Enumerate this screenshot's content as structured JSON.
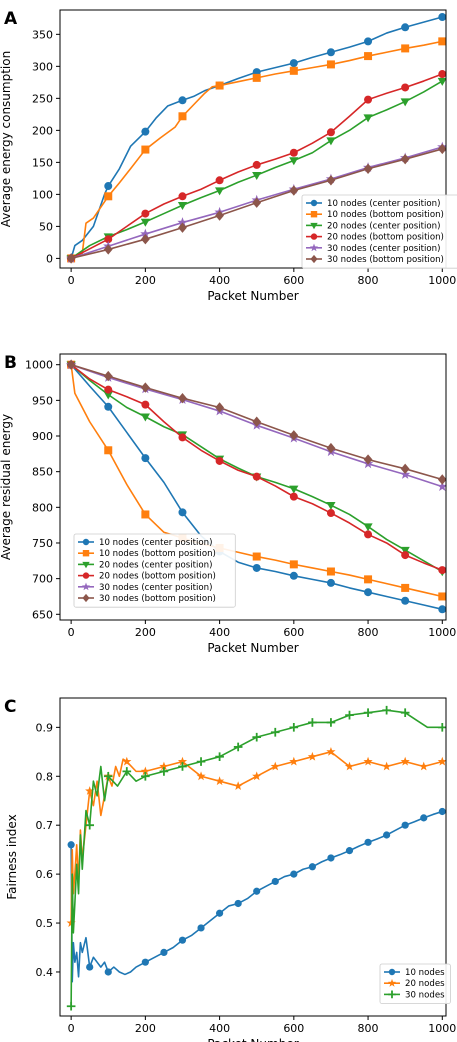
{
  "chart_data": [
    {
      "type": "line",
      "panel_label": "A",
      "xlabel": "Packet Number",
      "ylabel": "Average energy consumption",
      "xlim": [
        -30,
        1010
      ],
      "ylim": [
        -15,
        388
      ],
      "xticks": [
        0,
        200,
        400,
        600,
        800,
        1000
      ],
      "yticks": [
        0,
        50,
        100,
        150,
        200,
        250,
        300,
        350
      ],
      "legend_position": "lower-right",
      "grid": false,
      "series": [
        {
          "name": "10 nodes (center position)",
          "color": "#1f77b4",
          "marker": "circle",
          "x": [
            0,
            10,
            30,
            60,
            90,
            100,
            130,
            160,
            200,
            230,
            260,
            300,
            330,
            360,
            400,
            450,
            500,
            550,
            600,
            650,
            700,
            750,
            800,
            850,
            900,
            950,
            1000
          ],
          "y": [
            0,
            20,
            28,
            50,
            100,
            113,
            140,
            175,
            198,
            220,
            238,
            247,
            253,
            262,
            270,
            281,
            291,
            298,
            305,
            314,
            322,
            330,
            339,
            352,
            361,
            369,
            377
          ]
        },
        {
          "name": "10 nodes (bottom position)",
          "color": "#ff7f0e",
          "marker": "square",
          "x": [
            0,
            30,
            40,
            60,
            80,
            100,
            130,
            160,
            200,
            240,
            280,
            300,
            330,
            360,
            380,
            400,
            450,
            500,
            550,
            600,
            650,
            700,
            750,
            800,
            850,
            900,
            950,
            1000
          ],
          "y": [
            0,
            8,
            55,
            63,
            80,
            97,
            118,
            140,
            170,
            188,
            205,
            222,
            240,
            258,
            268,
            270,
            276,
            282,
            288,
            293,
            298,
            303,
            309,
            316,
            322,
            328,
            333,
            339
          ]
        },
        {
          "name": "20 nodes (center position)",
          "color": "#2ca02c",
          "marker": "triangle-down",
          "x": [
            0,
            50,
            100,
            150,
            200,
            250,
            300,
            350,
            400,
            450,
            500,
            550,
            600,
            650,
            700,
            750,
            800,
            850,
            900,
            950,
            1000
          ],
          "y": [
            0,
            20,
            34,
            45,
            57,
            70,
            83,
            95,
            106,
            119,
            130,
            142,
            153,
            165,
            184,
            200,
            220,
            232,
            245,
            260,
            277
          ]
        },
        {
          "name": "20 nodes (bottom position)",
          "color": "#d62728",
          "marker": "circle",
          "x": [
            0,
            50,
            100,
            150,
            200,
            250,
            300,
            350,
            400,
            450,
            500,
            550,
            600,
            650,
            700,
            750,
            800,
            850,
            900,
            950,
            1000
          ],
          "y": [
            0,
            15,
            30,
            50,
            70,
            85,
            97,
            108,
            122,
            135,
            146,
            155,
            165,
            180,
            197,
            222,
            248,
            258,
            267,
            277,
            288
          ]
        },
        {
          "name": "30 nodes (center position)",
          "color": "#9467bd",
          "marker": "star",
          "x": [
            0,
            100,
            200,
            300,
            400,
            500,
            600,
            700,
            800,
            900,
            1000
          ],
          "y": [
            0,
            19,
            38,
            56,
            72,
            91,
            108,
            124,
            142,
            157,
            174
          ]
        },
        {
          "name": "30 nodes (bottom position)",
          "color": "#8c564b",
          "marker": "diamond",
          "x": [
            0,
            100,
            200,
            300,
            400,
            500,
            600,
            700,
            800,
            900,
            1000
          ],
          "y": [
            0,
            14,
            30,
            48,
            67,
            87,
            106,
            122,
            140,
            155,
            171
          ]
        }
      ]
    },
    {
      "type": "line",
      "panel_label": "B",
      "xlabel": "Packet Number",
      "ylabel": "Average residual energy",
      "xlim": [
        -30,
        1010
      ],
      "ylim": [
        642,
        1015
      ],
      "xticks": [
        0,
        200,
        400,
        600,
        800,
        1000
      ],
      "yticks": [
        650,
        700,
        750,
        800,
        850,
        900,
        950,
        1000
      ],
      "legend_position": "lower-left",
      "grid": false,
      "series": [
        {
          "name": "10 nodes (center position)",
          "color": "#1f77b4",
          "marker": "circle",
          "x": [
            0,
            50,
            100,
            150,
            200,
            250,
            300,
            350,
            400,
            450,
            500,
            550,
            600,
            650,
            700,
            750,
            800,
            850,
            900,
            950,
            1000
          ],
          "y": [
            1000,
            970,
            941,
            905,
            869,
            835,
            793,
            760,
            738,
            723,
            715,
            710,
            704,
            699,
            694,
            687,
            681,
            675,
            669,
            663,
            657
          ]
        },
        {
          "name": "10 nodes (bottom position)",
          "color": "#ff7f0e",
          "marker": "square",
          "x": [
            0,
            10,
            20,
            50,
            100,
            150,
            200,
            250,
            300,
            350,
            400,
            450,
            500,
            550,
            600,
            650,
            700,
            750,
            800,
            850,
            900,
            950,
            1000
          ],
          "y": [
            1000,
            960,
            950,
            920,
            880,
            832,
            790,
            765,
            757,
            749,
            743,
            737,
            731,
            726,
            720,
            715,
            710,
            705,
            699,
            693,
            687,
            681,
            675
          ]
        },
        {
          "name": "20 nodes (center position)",
          "color": "#2ca02c",
          "marker": "triangle-down",
          "x": [
            0,
            50,
            100,
            150,
            200,
            250,
            300,
            350,
            400,
            450,
            500,
            550,
            600,
            650,
            700,
            750,
            800,
            850,
            900,
            950,
            1000
          ],
          "y": [
            1000,
            978,
            958,
            940,
            927,
            913,
            902,
            885,
            868,
            855,
            843,
            835,
            826,
            815,
            803,
            790,
            773,
            755,
            740,
            725,
            710
          ]
        },
        {
          "name": "20 nodes (bottom position)",
          "color": "#d62728",
          "marker": "circle",
          "x": [
            0,
            50,
            100,
            150,
            200,
            250,
            300,
            350,
            400,
            450,
            500,
            550,
            600,
            650,
            700,
            750,
            800,
            850,
            900,
            950,
            1000
          ],
          "y": [
            1000,
            980,
            965,
            955,
            944,
            920,
            898,
            880,
            865,
            852,
            843,
            830,
            815,
            805,
            792,
            778,
            762,
            750,
            733,
            722,
            712
          ]
        },
        {
          "name": "30 nodes (center position)",
          "color": "#9467bd",
          "marker": "star",
          "x": [
            0,
            100,
            200,
            300,
            400,
            500,
            600,
            700,
            800,
            900,
            1000
          ],
          "y": [
            1000,
            982,
            966,
            951,
            935,
            915,
            897,
            878,
            861,
            846,
            829
          ]
        },
        {
          "name": "30 nodes (bottom position)",
          "color": "#8c564b",
          "marker": "diamond",
          "x": [
            0,
            100,
            200,
            300,
            400,
            500,
            600,
            700,
            800,
            900,
            1000
          ],
          "y": [
            1000,
            984,
            968,
            953,
            940,
            920,
            901,
            883,
            867,
            854,
            839
          ]
        }
      ]
    },
    {
      "type": "line",
      "panel_label": "C",
      "xlabel": "Packet Number",
      "ylabel": "Fairness index",
      "xlim": [
        -30,
        1010
      ],
      "ylim": [
        0.31,
        0.96
      ],
      "xticks": [
        0,
        200,
        400,
        600,
        800,
        1000
      ],
      "yticks": [
        0.4,
        0.5,
        0.6,
        0.7,
        0.8,
        0.9
      ],
      "legend_position": "lower-right",
      "grid": false,
      "series": [
        {
          "name": "10 nodes",
          "color": "#1f77b4",
          "marker": "circle",
          "x": [
            0,
            3,
            6,
            10,
            15,
            20,
            25,
            30,
            40,
            50,
            60,
            70,
            80,
            90,
            100,
            115,
            130,
            145,
            160,
            175,
            200,
            225,
            250,
            275,
            300,
            325,
            350,
            375,
            400,
            425,
            450,
            475,
            500,
            525,
            550,
            575,
            600,
            625,
            650,
            675,
            700,
            725,
            750,
            775,
            800,
            825,
            850,
            875,
            900,
            925,
            950,
            975,
            1000
          ],
          "y": [
            0.66,
            0.38,
            0.46,
            0.42,
            0.44,
            0.39,
            0.46,
            0.44,
            0.47,
            0.41,
            0.43,
            0.42,
            0.41,
            0.42,
            0.4,
            0.41,
            0.4,
            0.395,
            0.4,
            0.41,
            0.42,
            0.43,
            0.44,
            0.45,
            0.465,
            0.475,
            0.49,
            0.505,
            0.52,
            0.535,
            0.54,
            0.55,
            0.565,
            0.575,
            0.585,
            0.595,
            0.6,
            0.61,
            0.615,
            0.625,
            0.633,
            0.64,
            0.648,
            0.657,
            0.665,
            0.672,
            0.68,
            0.69,
            0.7,
            0.707,
            0.715,
            0.722,
            0.728
          ]
        },
        {
          "name": "20 nodes",
          "color": "#ff7f0e",
          "marker": "star",
          "x": [
            0,
            3,
            6,
            10,
            15,
            20,
            25,
            30,
            40,
            50,
            60,
            70,
            80,
            90,
            100,
            110,
            120,
            130,
            140,
            150,
            175,
            200,
            250,
            300,
            350,
            400,
            450,
            500,
            550,
            600,
            650,
            700,
            750,
            800,
            850,
            900,
            950,
            1000
          ],
          "y": [
            0.5,
            0.65,
            0.56,
            0.6,
            0.66,
            0.58,
            0.69,
            0.63,
            0.7,
            0.77,
            0.74,
            0.79,
            0.72,
            0.76,
            0.8,
            0.78,
            0.82,
            0.8,
            0.835,
            0.83,
            0.81,
            0.81,
            0.82,
            0.83,
            0.8,
            0.79,
            0.78,
            0.8,
            0.82,
            0.83,
            0.84,
            0.85,
            0.82,
            0.83,
            0.82,
            0.83,
            0.82,
            0.83
          ]
        },
        {
          "name": "30 nodes",
          "color": "#2ca02c",
          "marker": "plus",
          "x": [
            0,
            3,
            6,
            10,
            15,
            20,
            25,
            30,
            40,
            50,
            60,
            70,
            80,
            90,
            100,
            125,
            150,
            175,
            200,
            250,
            300,
            350,
            400,
            450,
            500,
            550,
            600,
            650,
            700,
            750,
            800,
            850,
            900,
            930,
            960,
            1000
          ],
          "y": [
            0.33,
            0.6,
            0.48,
            0.54,
            0.62,
            0.56,
            0.68,
            0.61,
            0.73,
            0.7,
            0.79,
            0.76,
            0.82,
            0.75,
            0.8,
            0.78,
            0.81,
            0.79,
            0.8,
            0.81,
            0.82,
            0.83,
            0.84,
            0.86,
            0.88,
            0.89,
            0.9,
            0.91,
            0.91,
            0.925,
            0.93,
            0.935,
            0.93,
            0.915,
            0.9,
            0.9
          ]
        }
      ]
    }
  ]
}
